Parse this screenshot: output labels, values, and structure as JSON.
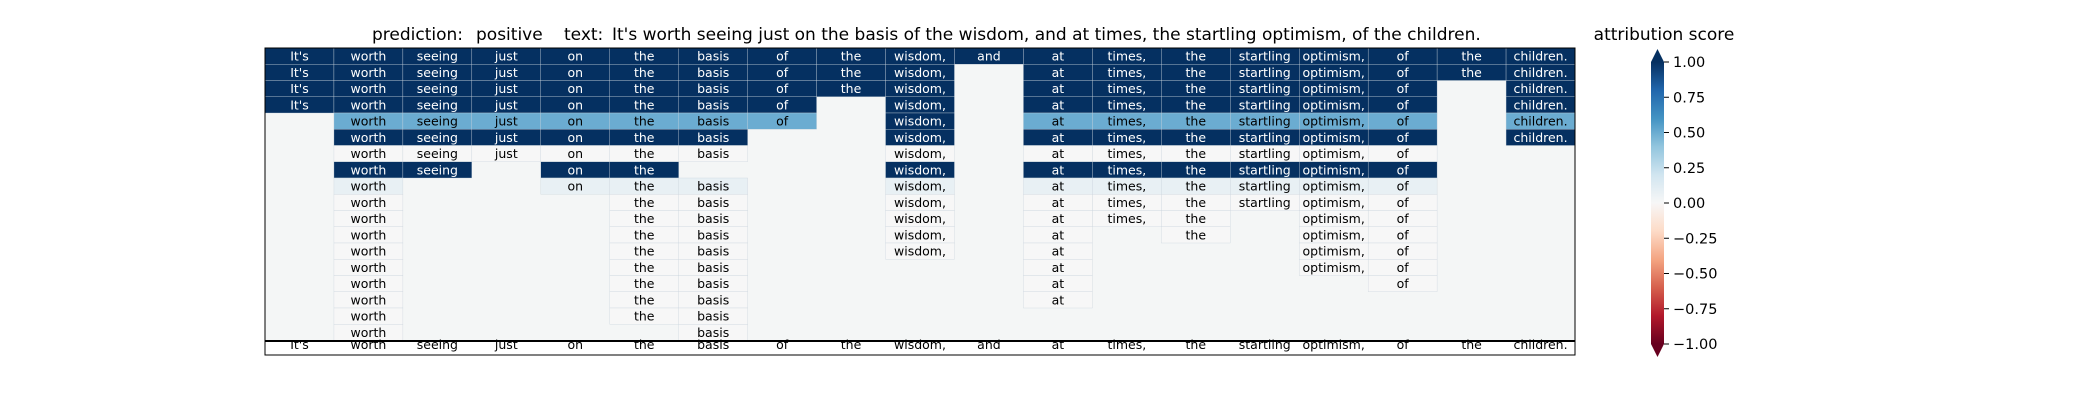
{
  "header": {
    "prediction_label": "prediction:",
    "prediction": "positive",
    "text_label": "text:",
    "text": "It's worth seeing just on the basis of the wisdom, and at times, the startling optimism, of the children."
  },
  "colorbar": {
    "title": "attribution score",
    "ticks": [
      "1.00",
      "0.75",
      "0.50",
      "0.25",
      "0.00",
      "−0.25",
      "−0.50",
      "−0.75",
      "−1.00"
    ],
    "tick_values": [
      1.0,
      0.75,
      0.5,
      0.25,
      0.0,
      -0.25,
      -0.5,
      -0.75,
      -1.0
    ],
    "range": [
      -1,
      1
    ],
    "colormap": "RdBu",
    "extend": "both"
  },
  "colors": {
    "neutral_cell": "#f4f6f6",
    "grid_line": "#c9d3dc",
    "frame": "#000000",
    "text_on_dark": "#ffffff",
    "text_on_light": "#000000"
  },
  "chart_data": {
    "type": "heatmap",
    "title": "",
    "columns": [
      "It's",
      "worth",
      "seeing",
      "just",
      "on",
      "the",
      "basis",
      "of",
      "the",
      "wisdom,",
      "and",
      "at",
      "times,",
      "the",
      "startling",
      "optimism,",
      "of",
      "the",
      "children."
    ],
    "bottom_row": [
      "It's",
      "worth",
      "seeing",
      "just",
      "on",
      "the",
      "basis",
      "of",
      "the",
      "wisdom,",
      "and",
      "at",
      "times,",
      "the",
      "startling",
      "optimism,",
      "of",
      "the",
      "children."
    ],
    "value_range": [
      -1,
      1
    ],
    "rows": [
      [
        1,
        1,
        1,
        1,
        1,
        1,
        1,
        1,
        1,
        1,
        1,
        1,
        1,
        1,
        1,
        1,
        1,
        1,
        1
      ],
      [
        1,
        1,
        1,
        1,
        1,
        1,
        1,
        1,
        1,
        1,
        null,
        1,
        1,
        1,
        1,
        1,
        1,
        1,
        1
      ],
      [
        1,
        1,
        1,
        1,
        1,
        1,
        1,
        1,
        1,
        1,
        null,
        1,
        1,
        1,
        1,
        1,
        1,
        null,
        1
      ],
      [
        1,
        1,
        1,
        1,
        1,
        1,
        1,
        1,
        null,
        1,
        null,
        1,
        1,
        1,
        1,
        1,
        1,
        null,
        1
      ],
      [
        null,
        0.5,
        0.5,
        0.5,
        0.5,
        0.5,
        0.5,
        0.5,
        null,
        1,
        null,
        0.5,
        0.5,
        0.5,
        0.5,
        0.5,
        0.5,
        null,
        0.5
      ],
      [
        null,
        1,
        1,
        1,
        1,
        1,
        1,
        null,
        null,
        1,
        null,
        1,
        1,
        1,
        1,
        1,
        1,
        null,
        1
      ],
      [
        null,
        0,
        0,
        0,
        0,
        0,
        0,
        null,
        null,
        0,
        null,
        0,
        0,
        0,
        0,
        0,
        0,
        null,
        null
      ],
      [
        null,
        1,
        1,
        null,
        1,
        1,
        null,
        null,
        null,
        1,
        null,
        1,
        1,
        1,
        1,
        1,
        1,
        null,
        null
      ],
      [
        null,
        0.08,
        null,
        null,
        0.08,
        0.08,
        0.08,
        null,
        null,
        0.08,
        null,
        0.08,
        0.08,
        0.08,
        0.08,
        0.08,
        0.08,
        null,
        null
      ],
      [
        null,
        0,
        null,
        null,
        null,
        0,
        0,
        null,
        null,
        0,
        null,
        0,
        0,
        0,
        0,
        0,
        0,
        null,
        null
      ],
      [
        null,
        0,
        null,
        null,
        null,
        0,
        0,
        null,
        null,
        0,
        null,
        0,
        0,
        0,
        null,
        0,
        0,
        null,
        null
      ],
      [
        null,
        0,
        null,
        null,
        null,
        0,
        0,
        null,
        null,
        0,
        null,
        0,
        null,
        0,
        null,
        0,
        0,
        null,
        null
      ],
      [
        null,
        0,
        null,
        null,
        null,
        0,
        0,
        null,
        null,
        0,
        null,
        0,
        null,
        null,
        null,
        0,
        0,
        null,
        null
      ],
      [
        null,
        0,
        null,
        null,
        null,
        0,
        0,
        null,
        null,
        null,
        null,
        0,
        null,
        null,
        null,
        0,
        0,
        null,
        null
      ],
      [
        null,
        0,
        null,
        null,
        null,
        0,
        0,
        null,
        null,
        null,
        null,
        0,
        null,
        null,
        null,
        null,
        0,
        null,
        null
      ],
      [
        null,
        0,
        null,
        null,
        null,
        0,
        0,
        null,
        null,
        null,
        null,
        0,
        null,
        null,
        null,
        null,
        null,
        null,
        null
      ],
      [
        null,
        0,
        null,
        null,
        null,
        0,
        0,
        null,
        null,
        null,
        null,
        null,
        null,
        null,
        null,
        null,
        null,
        null,
        null
      ],
      [
        null,
        0,
        null,
        null,
        null,
        null,
        0,
        null,
        null,
        null,
        null,
        null,
        null,
        null,
        null,
        null,
        null,
        null,
        null
      ]
    ]
  }
}
